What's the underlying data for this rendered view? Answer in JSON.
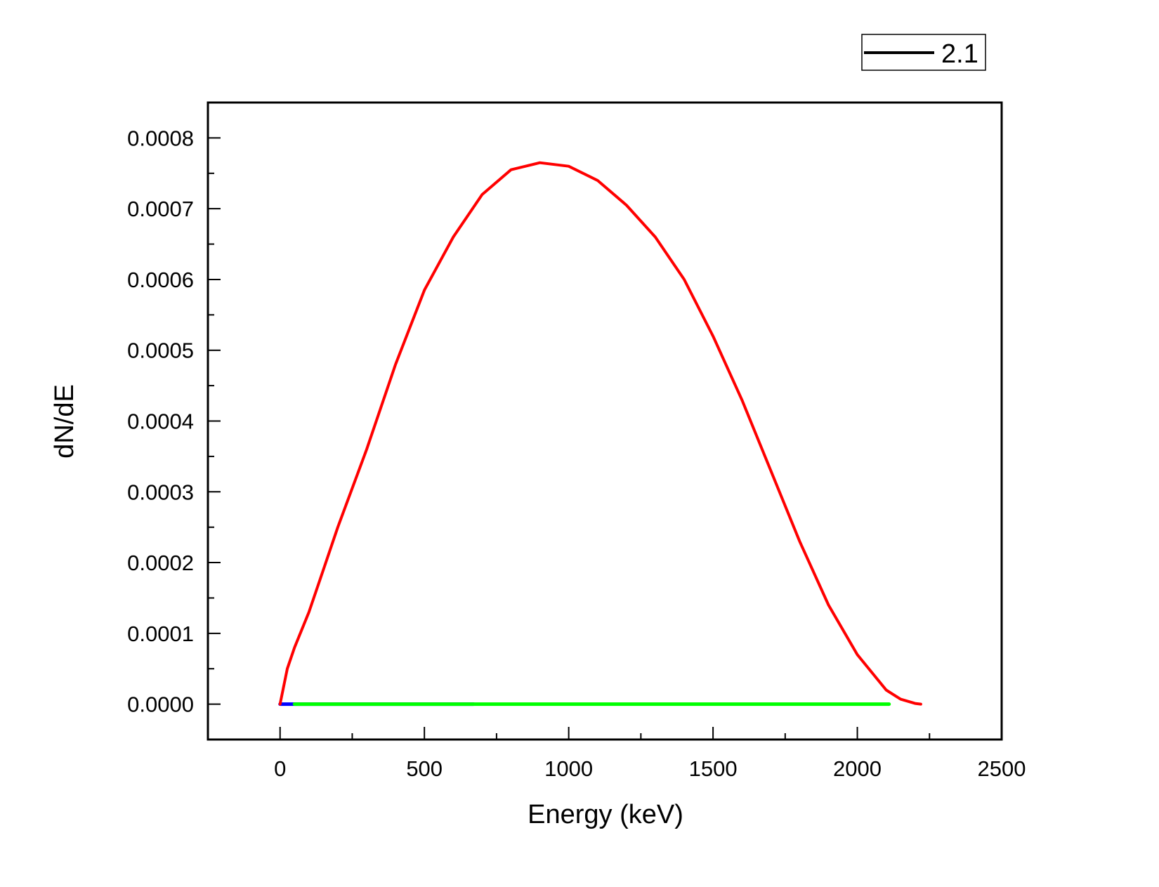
{
  "chart_data": {
    "type": "line",
    "title": "",
    "xlabel": "Energy (keV)",
    "ylabel": "dN/dE",
    "xlim": [
      -250,
      2500
    ],
    "ylim": [
      -5e-05,
      0.00085
    ],
    "xticks": [
      "0",
      "500",
      "1000",
      "1500",
      "2000",
      "2500"
    ],
    "xtick_values": [
      0,
      500,
      1000,
      1500,
      2000,
      2500
    ],
    "yticks": [
      "0.0000",
      "0.0001",
      "0.0002",
      "0.0003",
      "0.0004",
      "0.0005",
      "0.0006",
      "0.0007",
      "0.0008"
    ],
    "ytick_values": [
      0,
      0.0001,
      0.0002,
      0.0003,
      0.0004,
      0.0005,
      0.0006,
      0.0007,
      0.0008
    ],
    "grid": false,
    "legend": {
      "position": "top-right",
      "entries": [
        {
          "label": "2.1",
          "color": "#000000"
        }
      ]
    },
    "series": [
      {
        "name": "red-spectrum",
        "color": "#ff0000",
        "x": [
          0,
          25,
          50,
          100,
          150,
          200,
          300,
          400,
          500,
          600,
          700,
          800,
          900,
          1000,
          1100,
          1200,
          1300,
          1400,
          1500,
          1600,
          1700,
          1800,
          1900,
          2000,
          2100,
          2150,
          2200,
          2220
        ],
        "y": [
          0,
          5e-05,
          8e-05,
          0.00013,
          0.00019,
          0.00025,
          0.00036,
          0.00048,
          0.000585,
          0.00066,
          0.00072,
          0.000755,
          0.000765,
          0.00076,
          0.00074,
          0.000705,
          0.00066,
          0.0006,
          0.00052,
          0.00043,
          0.00033,
          0.00023,
          0.00014,
          7e-05,
          2e-05,
          7e-06,
          1e-06,
          0
        ]
      },
      {
        "name": "green-line",
        "color": "#00ff00",
        "x": [
          50,
          2110
        ],
        "y": [
          0,
          0
        ]
      },
      {
        "name": "blue-line",
        "color": "#0000ff",
        "x": [
          0,
          670
        ],
        "y": [
          0,
          0
        ]
      }
    ]
  }
}
